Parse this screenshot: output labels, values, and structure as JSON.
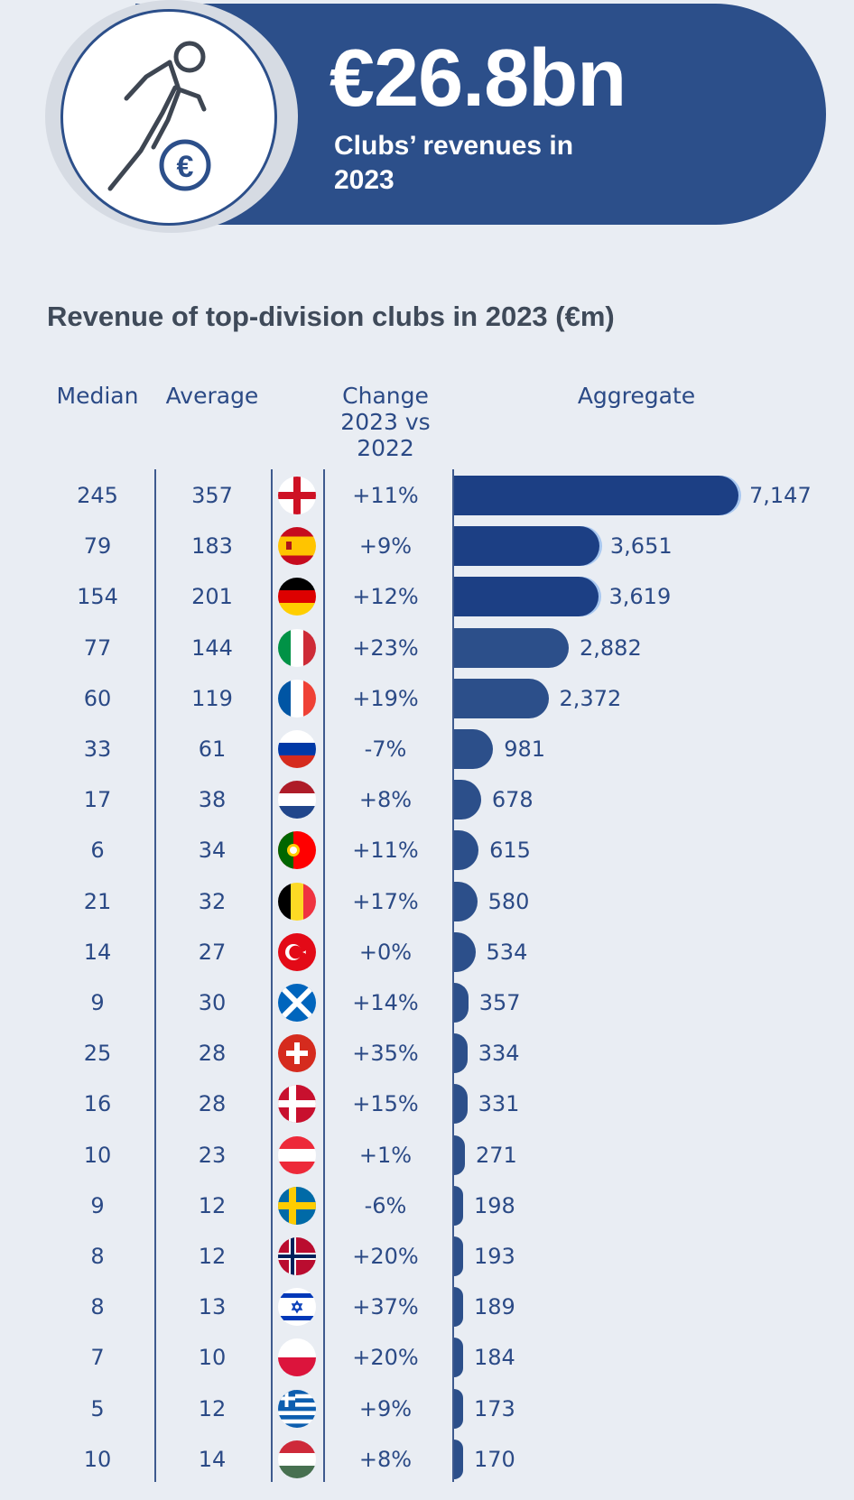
{
  "header": {
    "headline_value": "€26.8bn",
    "headline_caption": "Clubs’ revenues in 2023",
    "icon": "footballer-with-euro-coin-icon"
  },
  "chart_data": {
    "type": "bar",
    "title": "Revenue of top-division clubs in 2023 (€m)",
    "columns": [
      "Median",
      "Average",
      "Change 2023 vs 2022",
      "Aggregate"
    ],
    "rows": [
      {
        "flag": "england",
        "median": 245,
        "average": 357,
        "change": "+11%",
        "aggregate": 7147,
        "aggregate_label": "7,147"
      },
      {
        "flag": "spain",
        "median": 79,
        "average": 183,
        "change": "+9%",
        "aggregate": 3651,
        "aggregate_label": "3,651"
      },
      {
        "flag": "germany",
        "median": 154,
        "average": 201,
        "change": "+12%",
        "aggregate": 3619,
        "aggregate_label": "3,619"
      },
      {
        "flag": "italy",
        "median": 77,
        "average": 144,
        "change": "+23%",
        "aggregate": 2882,
        "aggregate_label": "2,882"
      },
      {
        "flag": "france",
        "median": 60,
        "average": 119,
        "change": "+19%",
        "aggregate": 2372,
        "aggregate_label": "2,372"
      },
      {
        "flag": "russia",
        "median": 33,
        "average": 61,
        "change": "-7%",
        "aggregate": 981,
        "aggregate_label": "981"
      },
      {
        "flag": "netherlands",
        "median": 17,
        "average": 38,
        "change": "+8%",
        "aggregate": 678,
        "aggregate_label": "678"
      },
      {
        "flag": "portugal",
        "median": 6,
        "average": 34,
        "change": "+11%",
        "aggregate": 615,
        "aggregate_label": "615"
      },
      {
        "flag": "belgium",
        "median": 21,
        "average": 32,
        "change": "+17%",
        "aggregate": 580,
        "aggregate_label": "580"
      },
      {
        "flag": "turkey",
        "median": 14,
        "average": 27,
        "change": "+0%",
        "aggregate": 534,
        "aggregate_label": "534"
      },
      {
        "flag": "scotland",
        "median": 9,
        "average": 30,
        "change": "+14%",
        "aggregate": 357,
        "aggregate_label": "357"
      },
      {
        "flag": "switzerland",
        "median": 25,
        "average": 28,
        "change": "+35%",
        "aggregate": 334,
        "aggregate_label": "334"
      },
      {
        "flag": "denmark",
        "median": 16,
        "average": 28,
        "change": "+15%",
        "aggregate": 331,
        "aggregate_label": "331"
      },
      {
        "flag": "austria",
        "median": 10,
        "average": 23,
        "change": "+1%",
        "aggregate": 271,
        "aggregate_label": "271"
      },
      {
        "flag": "sweden",
        "median": 9,
        "average": 12,
        "change": "-6%",
        "aggregate": 198,
        "aggregate_label": "198"
      },
      {
        "flag": "norway",
        "median": 8,
        "average": 12,
        "change": "+20%",
        "aggregate": 193,
        "aggregate_label": "193"
      },
      {
        "flag": "israel",
        "median": 8,
        "average": 13,
        "change": "+37%",
        "aggregate": 189,
        "aggregate_label": "189"
      },
      {
        "flag": "poland",
        "median": 7,
        "average": 10,
        "change": "+20%",
        "aggregate": 184,
        "aggregate_label": "184"
      },
      {
        "flag": "greece",
        "median": 5,
        "average": 12,
        "change": "+9%",
        "aggregate": 173,
        "aggregate_label": "173"
      },
      {
        "flag": "hungary",
        "median": 10,
        "average": 14,
        "change": "+8%",
        "aggregate": 170,
        "aggregate_label": "170"
      }
    ],
    "bar_colors": {
      "top3": "#1c3f84",
      "rest": "#2c4f8a",
      "highlight": "#a9c8f0"
    },
    "highlighted_rows": 3
  }
}
